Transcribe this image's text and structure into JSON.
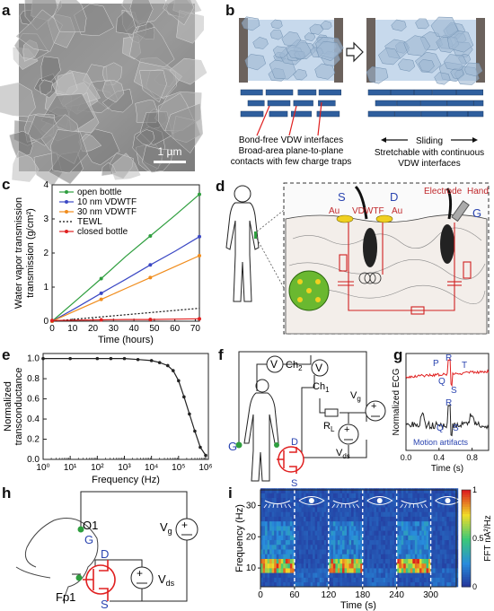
{
  "panels": {
    "a": {
      "letter": "a",
      "scale_bar": "1 µm"
    },
    "b": {
      "letter": "b",
      "left_caption": [
        "Bond-free VDW interfaces",
        "Broad-area plane-to-plane",
        "contacts with few charge traps"
      ],
      "right_arrow_label": "Sliding",
      "right_caption": [
        "Stretchable with continuous",
        "VDW interfaces"
      ]
    },
    "c": {
      "letter": "c"
    },
    "d": {
      "letter": "d",
      "labels": {
        "s": "S",
        "d": "D",
        "g": "G",
        "au1": "Au",
        "au2": "Au",
        "vdwtf": "VDWTF",
        "electrode": "Electrode",
        "hand": "Hand"
      }
    },
    "e": {
      "letter": "e"
    },
    "f": {
      "letter": "f",
      "labels": {
        "v1": "V",
        "ch2": "Ch",
        "ch2_sub": "2",
        "v2": "V",
        "ch1": "Ch",
        "ch1_sub": "1",
        "rl": "R",
        "rl_sub": "L",
        "vg": "V",
        "vg_sub": "g",
        "vds": "V",
        "vds_sub": "ds",
        "g": "G",
        "d": "D",
        "s": "S"
      }
    },
    "g": {
      "letter": "g",
      "labels": {
        "p": "P",
        "r": "R",
        "t": "T",
        "q": "Q",
        "s": "S",
        "r2": "R",
        "q2": "Q",
        "s2": "S",
        "motion": "Motion artifacts"
      }
    },
    "h": {
      "letter": "h",
      "labels": {
        "o1": "O1",
        "g": "G",
        "d": "D",
        "s": "S",
        "fp1": "Fp1",
        "vg": "V",
        "vg_sub": "g",
        "vds": "V",
        "vds_sub": "ds"
      }
    },
    "i": {
      "letter": "i"
    }
  },
  "chart_data": [
    {
      "id": "c",
      "type": "line",
      "xlabel": "Time (hours)",
      "ylabel": "Water vapor transmission (g/cm²)",
      "xlim": [
        0,
        72
      ],
      "ylim": [
        0,
        4
      ],
      "xticks": [
        0,
        10,
        20,
        30,
        40,
        50,
        60,
        70
      ],
      "yticks": [
        0,
        1,
        2,
        3,
        4
      ],
      "legend_position": "top-left",
      "series": [
        {
          "name": "open bottle",
          "color": "#2e9e3e",
          "style": "solid-marker",
          "x": [
            0,
            12,
            24,
            36,
            48,
            60,
            72
          ],
          "y": [
            0,
            0.62,
            1.25,
            1.9,
            2.5,
            3.1,
            3.72
          ]
        },
        {
          "name": "10 nm VDWTF",
          "color": "#3b48c4",
          "style": "solid-marker",
          "x": [
            0,
            12,
            24,
            36,
            48,
            60,
            72
          ],
          "y": [
            0,
            0.4,
            0.82,
            1.23,
            1.65,
            2.05,
            2.48
          ]
        },
        {
          "name": "30 nm VDWTF",
          "color": "#f08c1c",
          "style": "solid-marker",
          "x": [
            0,
            12,
            24,
            36,
            48,
            60,
            72
          ],
          "y": [
            0,
            0.32,
            0.64,
            0.96,
            1.28,
            1.6,
            1.92
          ]
        },
        {
          "name": "TEWL",
          "color": "#111111",
          "style": "dotted",
          "x": [
            0,
            72
          ],
          "y": [
            0,
            0.38
          ]
        },
        {
          "name": "closed bottle",
          "color": "#e02020",
          "style": "solid-marker",
          "x": [
            0,
            12,
            24,
            36,
            48,
            60,
            72
          ],
          "y": [
            0.02,
            0.03,
            0.04,
            0.05,
            0.05,
            0.06,
            0.07
          ]
        }
      ]
    },
    {
      "id": "e",
      "type": "line",
      "xlabel": "Frequency (Hz)",
      "ylabel": "Normalized transconductance",
      "xscale": "log",
      "xlim_exp": [
        0,
        6.1
      ],
      "ylim": [
        0,
        1.05
      ],
      "xtick_labels": [
        "10⁰",
        "10¹",
        "10²",
        "10³",
        "10⁴",
        "10⁵",
        "10⁶"
      ],
      "yticks": [
        0.0,
        0.2,
        0.4,
        0.6,
        0.8,
        1.0
      ],
      "series": [
        {
          "name": "",
          "color": "#222222",
          "log10_x": [
            0,
            1,
            2,
            2.5,
            3,
            3.5,
            4,
            4.3,
            4.6,
            4.8,
            5.0,
            5.2,
            5.4,
            5.6,
            5.8,
            6.0
          ],
          "y": [
            1.0,
            1.0,
            1.0,
            1.0,
            1.0,
            0.99,
            0.98,
            0.96,
            0.93,
            0.88,
            0.78,
            0.62,
            0.45,
            0.28,
            0.12,
            0.04
          ]
        }
      ]
    },
    {
      "id": "g",
      "type": "line",
      "xlabel": "Time (s)",
      "ylabel": "Normalized ECG",
      "xlim": [
        0,
        1.0
      ],
      "xticks": [
        0.0,
        0.4,
        0.8
      ],
      "series": [
        {
          "name": "",
          "color": "#e02020"
        },
        {
          "name": "",
          "color": "#222222"
        }
      ]
    },
    {
      "id": "i",
      "type": "heatmap",
      "xlabel": "Time (s)",
      "ylabel": "Frequency (Hz)",
      "colorbar_label": "FFT nA²/Hz",
      "xlim": [
        0,
        345
      ],
      "ylim": [
        4,
        35
      ],
      "xticks": [
        0,
        60,
        120,
        180,
        240,
        300
      ],
      "yticks": [
        10,
        20,
        30
      ],
      "colorbar_ticks": [
        0,
        0.5,
        1
      ],
      "dashed_lines_at": [
        60,
        120,
        180,
        240,
        300
      ]
    }
  ]
}
